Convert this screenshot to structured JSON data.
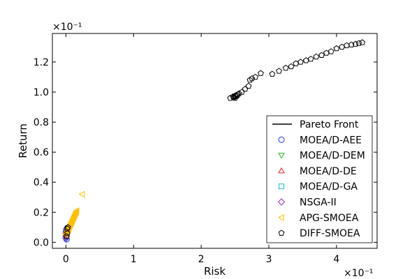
{
  "chart_data": {
    "type": "scatter",
    "xlabel": "Risk",
    "ylabel": "Return",
    "x_multiplier_label": "×10⁻¹",
    "y_multiplier_label": "×10⁻¹",
    "xlim": [
      -0.2,
      4.6
    ],
    "ylim": [
      -0.04,
      1.39
    ],
    "x_ticks": [
      0,
      1,
      2,
      3,
      4
    ],
    "y_ticks": [
      0.0,
      0.2,
      0.4,
      0.6,
      0.8,
      1.0,
      1.2
    ],
    "x_tick_labels": [
      "0",
      "1",
      "2",
      "3",
      "4"
    ],
    "y_tick_labels": [
      "0.0",
      "0.2",
      "0.4",
      "0.6",
      "0.8",
      "1.0",
      "1.2"
    ],
    "legend_position": "lower-right",
    "series": [
      {
        "name": "Pareto Front",
        "marker": "line",
        "color": "#000000",
        "x": [
          0.0,
          0.01,
          0.02,
          0.04
        ],
        "y": [
          0.0,
          0.04,
          0.07,
          0.1
        ]
      },
      {
        "name": "MOEA/D-AEE",
        "marker": "circle",
        "color": "#1f3fd6",
        "x": [
          0.0,
          0.005,
          0.01,
          0.012,
          0.0,
          0.008,
          0.015,
          0.02,
          0.01
        ],
        "y": [
          0.03,
          0.04,
          0.05,
          0.06,
          0.07,
          0.08,
          0.09,
          0.095,
          0.02
        ]
      },
      {
        "name": "MOEA/D-DEM",
        "marker": "triangle-down",
        "color": "#2db82d",
        "x": [
          0.0,
          0.005,
          0.01,
          0.015,
          0.02
        ],
        "y": [
          0.03,
          0.05,
          0.06,
          0.08,
          0.09
        ]
      },
      {
        "name": "MOEA/D-DE",
        "marker": "triangle-up",
        "color": "#d62728",
        "x": [
          0.0,
          0.006,
          0.012,
          0.018
        ],
        "y": [
          0.04,
          0.055,
          0.07,
          0.085
        ]
      },
      {
        "name": "MOEA/D-GA",
        "marker": "square",
        "color": "#17becf",
        "x": [
          0.0,
          0.007,
          0.014,
          0.02
        ],
        "y": [
          0.035,
          0.05,
          0.065,
          0.08
        ]
      },
      {
        "name": "NSGA-II",
        "marker": "diamond",
        "color": "#9b30c8",
        "x": [
          0.0,
          0.004,
          0.008,
          0.012,
          0.016,
          0.02,
          0.0,
          0.01
        ],
        "y": [
          0.03,
          0.04,
          0.05,
          0.06,
          0.07,
          0.08,
          0.06,
          0.09
        ]
      },
      {
        "name": "APG-SMOEA",
        "marker": "triangle-left",
        "color": "#ffbf00",
        "x": [
          0.0,
          0.01,
          0.02,
          0.03,
          0.04,
          0.05,
          0.06,
          0.07,
          0.08,
          0.09,
          0.1,
          0.11,
          0.12,
          0.13,
          0.14,
          0.15,
          0.16,
          0.005,
          0.015,
          0.025,
          0.035,
          0.045,
          0.055,
          0.065,
          0.075,
          0.085,
          0.095,
          0.105,
          0.115,
          0.125,
          0.135,
          0.145,
          0.155,
          0.24
        ],
        "y": [
          0.05,
          0.06,
          0.07,
          0.08,
          0.09,
          0.1,
          0.11,
          0.12,
          0.13,
          0.14,
          0.15,
          0.16,
          0.17,
          0.18,
          0.19,
          0.2,
          0.21,
          0.055,
          0.065,
          0.075,
          0.085,
          0.095,
          0.105,
          0.115,
          0.125,
          0.135,
          0.145,
          0.155,
          0.165,
          0.175,
          0.185,
          0.195,
          0.205,
          0.32
        ]
      },
      {
        "name": "DIFF-SMOEA",
        "marker": "pentagon",
        "color": "#000000",
        "x": [
          0.02,
          0.02,
          0.01,
          0.03,
          2.43,
          2.47,
          2.5,
          2.52,
          2.54,
          2.56,
          2.48,
          2.5,
          2.51,
          2.53,
          2.6,
          2.65,
          2.7,
          2.72,
          2.75,
          2.8,
          2.88,
          3.05,
          3.15,
          3.25,
          3.33,
          3.4,
          3.47,
          3.55,
          3.62,
          3.7,
          3.78,
          3.85,
          3.92,
          4.0,
          4.08,
          4.15,
          4.22,
          4.28,
          4.33,
          4.38
        ],
        "y": [
          0.09,
          0.06,
          0.04,
          0.1,
          0.96,
          0.97,
          0.975,
          0.98,
          0.985,
          0.99,
          0.965,
          0.96,
          0.97,
          0.975,
          1.0,
          1.02,
          1.04,
          1.08,
          1.09,
          1.1,
          1.125,
          1.12,
          1.14,
          1.16,
          1.17,
          1.19,
          1.2,
          1.21,
          1.22,
          1.235,
          1.245,
          1.26,
          1.27,
          1.29,
          1.3,
          1.31,
          1.315,
          1.32,
          1.325,
          1.33
        ]
      }
    ]
  }
}
